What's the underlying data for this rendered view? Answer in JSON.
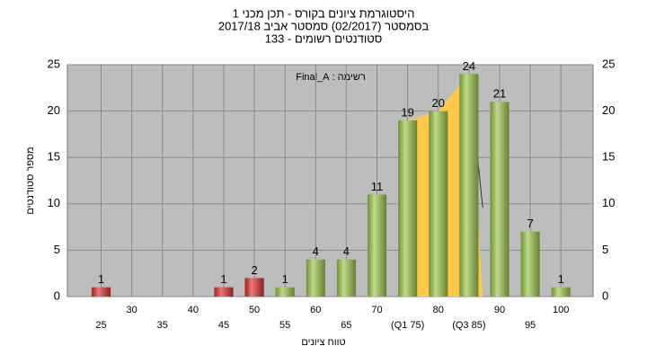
{
  "chart_data": {
    "type": "bar",
    "title": "היסטוגרמת ציונים בקורס - תכן מכני 1",
    "subtitle": "בסמסטר  (02/2017)  סמסטר אביב 2017/18",
    "subtitle2": "סטודנטים רשומים - 133",
    "annotation": "רשימה : Final_A",
    "x_label": "טווח ציונים",
    "y_label": "מספר סטודנטים",
    "categories": [
      "25",
      "30",
      "35",
      "40",
      "45",
      "50",
      "55",
      "60",
      "65",
      "70",
      "(Q1 75)",
      "80",
      "(Q3 85)",
      "90",
      "95",
      "100"
    ],
    "values": [
      1,
      0,
      0,
      0,
      1,
      2,
      1,
      4,
      4,
      11,
      19,
      20,
      24,
      21,
      7,
      1
    ],
    "colors": [
      "#e03030",
      "#e03030",
      "#e03030",
      "#e03030",
      "#e03030",
      "#e03030",
      "#9cc84a",
      "#9cc84a",
      "#9cc84a",
      "#9cc84a",
      "#9cc84a",
      "#9cc84a",
      "#9cc84a",
      "#9cc84a",
      "#9cc84a",
      "#9cc84a"
    ],
    "highlight_color": "#ffc84a",
    "ylim": [
      0,
      25
    ],
    "yticks": [
      0,
      5,
      10,
      15,
      20,
      25
    ],
    "grid": true
  }
}
